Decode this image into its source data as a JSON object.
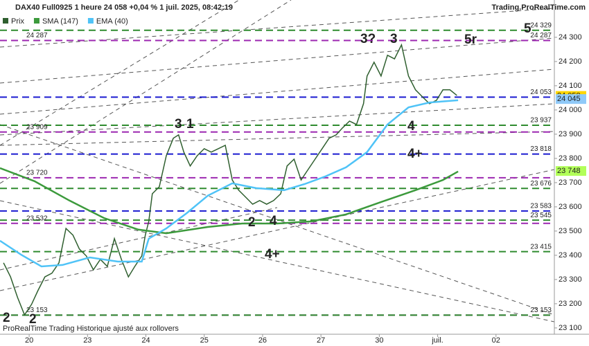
{
  "header": {
    "title": "DAX40 Full0925 1 heure 24 058 +0,04 % 1 juil. 2025, 08:42:19",
    "source": "Trading.ProRealTime.com",
    "footer": "ProRealTime Trading  Historique ajusté aux rollovers"
  },
  "chart_data": {
    "type": "line",
    "xlim": [
      -0.5,
      9.0
    ],
    "xticks": [
      {
        "value": 0,
        "label": "20"
      },
      {
        "value": 1,
        "label": "23"
      },
      {
        "value": 2,
        "label": "24"
      },
      {
        "value": 3,
        "label": "25"
      },
      {
        "value": 4,
        "label": "26"
      },
      {
        "value": 5,
        "label": "27"
      },
      {
        "value": 6,
        "label": "30"
      },
      {
        "value": 7,
        "label": "juil."
      },
      {
        "value": 8,
        "label": "02"
      }
    ],
    "ylim": [
      23074,
      24454
    ],
    "yticks": [
      {
        "value": 23100,
        "label": "23 100"
      },
      {
        "value": 23200,
        "label": "23 200"
      },
      {
        "value": 23300,
        "label": "23 300"
      },
      {
        "value": 23400,
        "label": "23 400"
      },
      {
        "value": 23500,
        "label": "23 500"
      },
      {
        "value": 23600,
        "label": "23 600"
      },
      {
        "value": 23700,
        "label": "23 700"
      },
      {
        "value": 23800,
        "label": "23 800"
      },
      {
        "value": 23900,
        "label": "23 900"
      },
      {
        "value": 24000,
        "label": "24 000"
      },
      {
        "value": 24100,
        "label": "24 100"
      },
      {
        "value": 24200,
        "label": "24 200"
      },
      {
        "value": 24300,
        "label": "24 300"
      }
    ],
    "series": [
      {
        "name": "Prix",
        "color": "#2f5f2f",
        "x": [
          -0.44,
          -0.32,
          -0.2,
          -0.08,
          0.04,
          0.15,
          0.27,
          0.39,
          0.51,
          0.63,
          0.75,
          0.86,
          0.98,
          1.1,
          1.22,
          1.34,
          1.46,
          1.58,
          1.7,
          1.81,
          1.93,
          1.99,
          2.05,
          2.11,
          2.23,
          2.35,
          2.47,
          2.56,
          2.65,
          2.76,
          2.88,
          3.0,
          3.12,
          3.24,
          3.36,
          3.48,
          3.59,
          3.71,
          3.83,
          3.95,
          4.07,
          4.19,
          4.31,
          4.42,
          4.54,
          4.66,
          4.78,
          4.9,
          5.02,
          5.14,
          5.26,
          5.37,
          5.49,
          5.61,
          5.73,
          5.79,
          5.91,
          6.03,
          6.14,
          6.26,
          6.38,
          6.5,
          6.62,
          6.74,
          6.86,
          6.98,
          7.09,
          7.21,
          7.33
        ],
        "values": [
          23369,
          23311,
          23226,
          23154,
          23197,
          23254,
          23311,
          23326,
          23369,
          23511,
          23483,
          23426,
          23397,
          23340,
          23383,
          23354,
          23469,
          23383,
          23311,
          23354,
          23397,
          23483,
          23540,
          23654,
          23683,
          23811,
          23883,
          23897,
          23826,
          23769,
          23811,
          23840,
          23826,
          23840,
          23854,
          23711,
          23669,
          23640,
          23611,
          23626,
          23611,
          23626,
          23654,
          23769,
          23797,
          23711,
          23754,
          23797,
          23840,
          23883,
          23897,
          23926,
          23954,
          23940,
          24026,
          24140,
          24197,
          24140,
          24226,
          24211,
          24269,
          24140,
          24083,
          24054,
          24026,
          24040,
          24083,
          24083,
          24060
        ]
      },
      {
        "name": "SMA (147)",
        "color": "#3c9a3c",
        "x": [
          -0.5,
          0.09,
          0.69,
          1.28,
          1.87,
          2.35,
          3.06,
          3.65,
          4.25,
          4.84,
          5.43,
          6.03,
          6.62,
          7.09,
          7.35
        ],
        "values": [
          23760,
          23706,
          23626,
          23554,
          23506,
          23491,
          23517,
          23531,
          23531,
          23540,
          23569,
          23620,
          23669,
          23711,
          23746
        ]
      },
      {
        "name": "EMA (40)",
        "color": "#4fc3f7",
        "x": [
          -0.5,
          -0.14,
          0.21,
          0.57,
          1.04,
          1.52,
          1.93,
          2.05,
          2.35,
          2.7,
          3.06,
          3.48,
          3.89,
          4.37,
          4.72,
          5.08,
          5.43,
          5.79,
          6.14,
          6.5,
          6.86,
          7.35
        ],
        "values": [
          23460,
          23403,
          23354,
          23360,
          23391,
          23374,
          23374,
          23469,
          23511,
          23574,
          23646,
          23697,
          23677,
          23669,
          23694,
          23726,
          23763,
          23826,
          23940,
          24011,
          24031,
          24040
        ]
      }
    ],
    "levels": [
      {
        "value": 24329,
        "label": "24 329",
        "color": "#2e8b2e",
        "side": "right"
      },
      {
        "value": 24287,
        "label": "24 287",
        "color": "#9c27b0",
        "side": "both"
      },
      {
        "value": 24053,
        "label": "24 053",
        "color": "#1a1ad0",
        "side": "right"
      },
      {
        "value": 23937,
        "label": "23 937",
        "color": "#2e8b2e",
        "side": "right"
      },
      {
        "value": 23909,
        "label": "23 909",
        "color": "#9c27b0",
        "side": "left"
      },
      {
        "value": 23818,
        "label": "23 818",
        "color": "#1a1ad0",
        "side": "right"
      },
      {
        "value": 23720,
        "label": "23 720",
        "color": "#9c27b0",
        "side": "left"
      },
      {
        "value": 23676,
        "label": "23 676",
        "color": "#2e8b2e",
        "side": "right"
      },
      {
        "value": 23583,
        "label": "23 583",
        "color": "#1a1ad0",
        "side": "right"
      },
      {
        "value": 23545,
        "label": "23 545",
        "color": "#2e8b2e",
        "side": "right"
      },
      {
        "value": 23532,
        "label": "23 532",
        "color": "#9c27b0",
        "side": "left"
      },
      {
        "value": 23415,
        "label": "23 415",
        "color": "#2e8b2e",
        "side": "right"
      },
      {
        "value": 23153,
        "label": "23 153",
        "color": "#9c27b0",
        "side": "left"
      },
      {
        "value": 23153,
        "label": "23 153",
        "color": "#2e8b2e",
        "side": "right"
      }
    ],
    "price_markers": [
      {
        "value": 24058,
        "label": "24 058",
        "color": "#ffd600"
      },
      {
        "value": 24045,
        "label": "24 045",
        "color": "#90caf9"
      },
      {
        "value": 23748,
        "label": "23 748",
        "color": "#b2ff59"
      }
    ],
    "annotations": [
      "3?",
      "3",
      "5r",
      "5",
      "3",
      "1",
      "4",
      "4+",
      "2",
      "4",
      "4+",
      "2",
      "2"
    ]
  }
}
